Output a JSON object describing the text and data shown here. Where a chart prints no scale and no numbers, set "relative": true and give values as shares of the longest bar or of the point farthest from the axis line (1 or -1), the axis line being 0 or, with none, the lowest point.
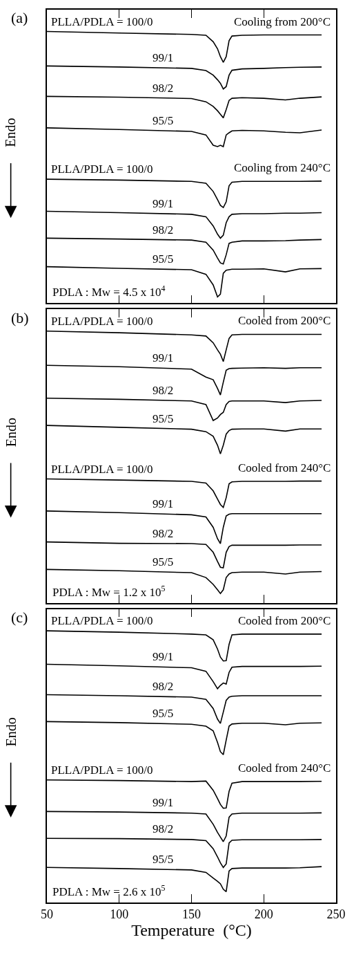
{
  "chart_data": [
    {
      "type": "line",
      "title": "(a)",
      "ylabel": "Endo",
      "relative": true,
      "xlim": [
        50,
        250
      ],
      "xticks": [
        50,
        100,
        150,
        200,
        250
      ],
      "tick_labels": false,
      "annotations": [
        "Cooling from 200°C",
        "Cooling from 240°C",
        "PDLA : Mw = 4.5 x 10$^{4}$"
      ],
      "x": [
        50,
        100,
        150,
        160,
        165,
        168,
        170,
        172,
        174,
        176,
        178,
        185,
        200,
        215,
        225,
        240
      ],
      "series": [
        {
          "name": "PLLA/PDLA = 100/0",
          "color": "#000000",
          "values": [
            1.0,
            0.994,
            0.989,
            0.986,
            0.962,
            0.936,
            0.907,
            0.886,
            0.907,
            0.966,
            0.983,
            0.986,
            0.987,
            0.987,
            0.987,
            0.987
          ]
        },
        {
          "name": "99/1",
          "color": "#000000",
          "values": [
            0.873,
            0.869,
            0.864,
            0.856,
            0.839,
            0.822,
            0.809,
            0.788,
            0.797,
            0.839,
            0.857,
            0.862,
            0.864,
            0.867,
            0.868,
            0.869
          ]
        },
        {
          "name": "98/2",
          "color": "#000000",
          "values": [
            0.761,
            0.758,
            0.753,
            0.741,
            0.724,
            0.708,
            0.695,
            0.682,
            0.712,
            0.746,
            0.754,
            0.756,
            0.754,
            0.748,
            0.754,
            0.759
          ]
        },
        {
          "name": "95/5",
          "color": "#000000",
          "values": [
            0.645,
            0.639,
            0.632,
            0.619,
            0.581,
            0.576,
            0.581,
            0.576,
            0.619,
            0.627,
            0.634,
            0.636,
            0.634,
            0.629,
            0.627,
            0.637
          ]
        },
        {
          "name": "PLLA/PDLA = 100/0",
          "color": "#000000",
          "values": [
            0.456,
            0.453,
            0.448,
            0.441,
            0.411,
            0.381,
            0.36,
            0.352,
            0.373,
            0.432,
            0.445,
            0.448,
            0.448,
            0.448,
            0.448,
            0.449
          ]
        },
        {
          "name": "99/1",
          "color": "#000000",
          "values": [
            0.338,
            0.333,
            0.327,
            0.318,
            0.284,
            0.254,
            0.239,
            0.25,
            0.296,
            0.318,
            0.327,
            0.329,
            0.329,
            0.331,
            0.331,
            0.333
          ]
        },
        {
          "name": "98/2",
          "color": "#000000",
          "values": [
            0.239,
            0.236,
            0.232,
            0.224,
            0.195,
            0.166,
            0.148,
            0.144,
            0.178,
            0.22,
            0.224,
            0.229,
            0.229,
            0.23,
            0.232,
            0.234
          ]
        },
        {
          "name": "95/5",
          "color": "#000000",
          "values": [
            0.134,
            0.128,
            0.123,
            0.106,
            0.067,
            0.023,
            0.033,
            0.11,
            0.121,
            0.123,
            0.125,
            0.125,
            0.126,
            0.115,
            0.126,
            0.127
          ]
        }
      ]
    },
    {
      "type": "line",
      "title": "(b)",
      "ylabel": "Endo",
      "relative": true,
      "xlim": [
        50,
        250
      ],
      "xticks": [
        50,
        100,
        150,
        200,
        250
      ],
      "tick_labels": false,
      "annotations": [
        "Cooled from 200°C",
        "Cooled from 240°C",
        "PDLA : Mw = 1.2 x 10$^{5}$"
      ],
      "x": [
        50,
        100,
        150,
        160,
        165,
        168,
        170,
        172,
        174,
        176,
        178,
        185,
        200,
        215,
        225,
        240
      ],
      "series": [
        {
          "name": "PLLA/PDLA = 100/0",
          "color": "#000000",
          "values": [
            1.0,
            0.994,
            0.986,
            0.982,
            0.957,
            0.931,
            0.915,
            0.888,
            0.931,
            0.973,
            0.986,
            0.988,
            0.988,
            0.988,
            0.988,
            0.988
          ]
        },
        {
          "name": "99/1",
          "color": "#000000",
          "values": [
            0.874,
            0.869,
            0.86,
            0.831,
            0.821,
            0.789,
            0.765,
            0.812,
            0.856,
            0.862,
            0.863,
            0.864,
            0.865,
            0.863,
            0.865,
            0.865
          ]
        },
        {
          "name": "98/2",
          "color": "#000000",
          "values": [
            0.753,
            0.749,
            0.743,
            0.73,
            0.671,
            0.68,
            0.693,
            0.701,
            0.73,
            0.741,
            0.743,
            0.743,
            0.743,
            0.737,
            0.743,
            0.745
          ]
        },
        {
          "name": "95/5",
          "color": "#000000",
          "values": [
            0.653,
            0.646,
            0.639,
            0.63,
            0.613,
            0.58,
            0.548,
            0.58,
            0.621,
            0.634,
            0.639,
            0.64,
            0.64,
            0.632,
            0.64,
            0.64
          ]
        },
        {
          "name": "PLLA/PDLA = 100/0",
          "color": "#000000",
          "values": [
            0.456,
            0.452,
            0.447,
            0.441,
            0.412,
            0.382,
            0.362,
            0.351,
            0.387,
            0.438,
            0.445,
            0.447,
            0.447,
            0.447,
            0.448,
            0.448
          ]
        },
        {
          "name": "99/1",
          "color": "#000000",
          "values": [
            0.338,
            0.332,
            0.324,
            0.316,
            0.278,
            0.236,
            0.218,
            0.278,
            0.32,
            0.326,
            0.328,
            0.328,
            0.328,
            0.328,
            0.328,
            0.328
          ]
        },
        {
          "name": "98/2",
          "color": "#000000",
          "values": [
            0.224,
            0.219,
            0.218,
            0.215,
            0.186,
            0.152,
            0.131,
            0.129,
            0.186,
            0.207,
            0.212,
            0.212,
            0.212,
            0.212,
            0.213,
            0.213
          ]
        },
        {
          "name": "95/5",
          "color": "#000000",
          "values": [
            0.123,
            0.118,
            0.111,
            0.093,
            0.068,
            0.048,
            0.034,
            0.048,
            0.093,
            0.106,
            0.111,
            0.113,
            0.113,
            0.106,
            0.113,
            0.115
          ]
        }
      ]
    },
    {
      "type": "line",
      "title": "(c)",
      "ylabel": "Endo",
      "xlabel": "Temperature  (°C)",
      "relative": true,
      "xlim": [
        50,
        250
      ],
      "xticks": [
        50,
        100,
        150,
        200,
        250
      ],
      "tick_labels": "x",
      "annotations": [
        "Cooled from 200°C",
        "Cooled from 240°C",
        "PDLA : Mw = 2.6 x 10$^{5}$"
      ],
      "x": [
        50,
        100,
        150,
        160,
        165,
        168,
        170,
        172,
        174,
        176,
        178,
        185,
        200,
        215,
        225,
        240
      ],
      "series": [
        {
          "name": "PLLA/PDLA = 100/0",
          "color": "#000000",
          "values": [
            1.0,
            0.995,
            0.988,
            0.985,
            0.967,
            0.933,
            0.903,
            0.889,
            0.89,
            0.95,
            0.985,
            0.988,
            0.988,
            0.988,
            0.988,
            0.988
          ]
        },
        {
          "name": "99/1",
          "color": "#000000",
          "values": [
            0.877,
            0.871,
            0.864,
            0.851,
            0.813,
            0.787,
            0.799,
            0.808,
            0.804,
            0.847,
            0.866,
            0.869,
            0.869,
            0.869,
            0.869,
            0.87
          ]
        },
        {
          "name": "98/2",
          "color": "#000000",
          "values": [
            0.765,
            0.761,
            0.756,
            0.748,
            0.714,
            0.675,
            0.659,
            0.701,
            0.744,
            0.756,
            0.759,
            0.761,
            0.761,
            0.761,
            0.761,
            0.761
          ]
        },
        {
          "name": "95/5",
          "color": "#000000",
          "values": [
            0.666,
            0.662,
            0.656,
            0.649,
            0.632,
            0.589,
            0.555,
            0.544,
            0.598,
            0.649,
            0.657,
            0.66,
            0.66,
            0.654,
            0.66,
            0.661
          ]
        },
        {
          "name": "PLLA/PDLA = 100/0",
          "color": "#000000",
          "values": [
            0.451,
            0.449,
            0.445,
            0.447,
            0.413,
            0.383,
            0.361,
            0.347,
            0.348,
            0.409,
            0.439,
            0.445,
            0.445,
            0.445,
            0.445,
            0.446
          ]
        },
        {
          "name": "99/1",
          "color": "#000000",
          "values": [
            0.335,
            0.333,
            0.329,
            0.326,
            0.288,
            0.258,
            0.241,
            0.224,
            0.245,
            0.314,
            0.326,
            0.329,
            0.329,
            0.329,
            0.329,
            0.33
          ]
        },
        {
          "name": "98/2",
          "color": "#000000",
          "values": [
            0.236,
            0.235,
            0.232,
            0.228,
            0.198,
            0.168,
            0.146,
            0.129,
            0.142,
            0.219,
            0.229,
            0.231,
            0.231,
            0.231,
            0.231,
            0.232
          ]
        },
        {
          "name": "95/5",
          "color": "#000000",
          "values": [
            0.129,
            0.125,
            0.12,
            0.111,
            0.09,
            0.078,
            0.069,
            0.049,
            0.04,
            0.116,
            0.125,
            0.127,
            0.127,
            0.127,
            0.128,
            0.132
          ]
        }
      ]
    }
  ]
}
